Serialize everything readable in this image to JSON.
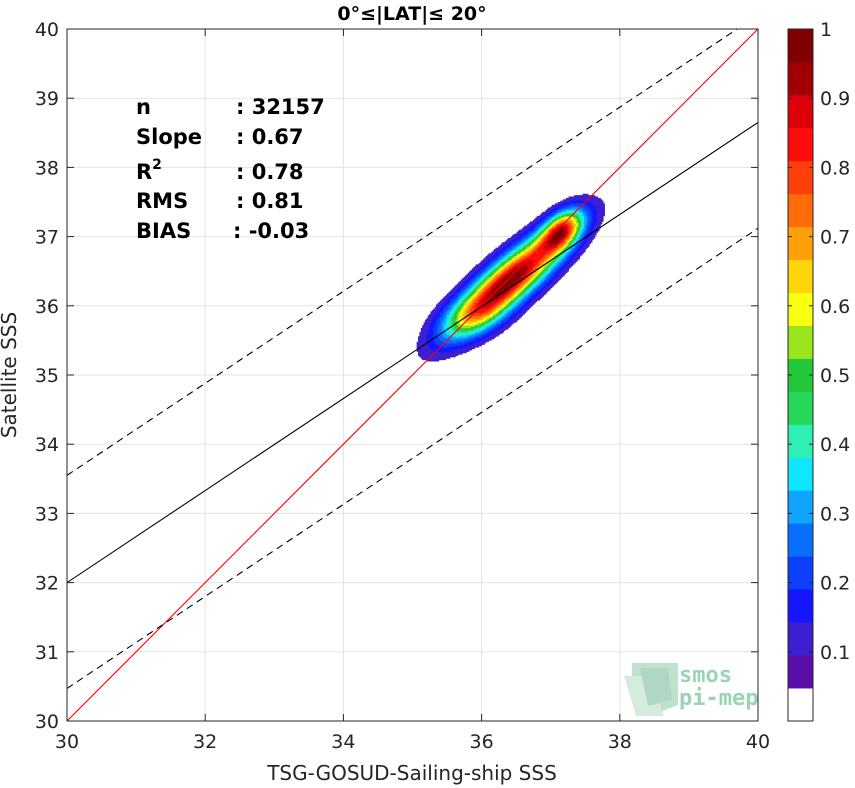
{
  "chart_data": {
    "type": "heatmap",
    "title": "0°≤|LAT|≤ 20°",
    "xlabel": "TSG-GOSUD-Sailing-ship SSS",
    "ylabel": "Satellite SSS",
    "xlim": [
      30,
      40
    ],
    "ylim": [
      30,
      40
    ],
    "xticks": [
      "30",
      "32",
      "34",
      "36",
      "38",
      "40"
    ],
    "yticks": [
      "30",
      "31",
      "32",
      "33",
      "34",
      "35",
      "36",
      "37",
      "38",
      "39",
      "40"
    ],
    "grid": true,
    "stats": [
      {
        "label": "n",
        "value": ": 32157"
      },
      {
        "label": "Slope",
        "value": ": 0.67"
      },
      {
        "label": "R",
        "sup": "2",
        "value": ": 0.78"
      },
      {
        "label": "RMS",
        "value": ": 0.81"
      },
      {
        "label": "BIAS",
        "value": ": -0.03"
      }
    ],
    "lines": {
      "identity": {
        "x": [
          30,
          40
        ],
        "y": [
          30,
          40
        ],
        "color": "#ff0000",
        "style": "solid"
      },
      "fit": {
        "x": [
          30,
          40
        ],
        "y": [
          32.0,
          38.65
        ],
        "color": "#000000",
        "style": "solid"
      },
      "upper_bound": {
        "x": [
          30,
          40
        ],
        "y": [
          33.55,
          40.2
        ],
        "color": "#000000",
        "style": "dashed"
      },
      "lower_bound": {
        "x": [
          30,
          40
        ],
        "y": [
          30.47,
          37.12
        ],
        "color": "#000000",
        "style": "dashed"
      }
    },
    "density_peaks": [
      {
        "x": 36.42,
        "y": 36.38,
        "value": 1.0,
        "sx": 0.55,
        "sy": 0.48,
        "rho": 0.85
      },
      {
        "x": 37.15,
        "y": 37.08,
        "value": 0.65,
        "sx": 0.2,
        "sy": 0.2,
        "rho": 0.5
      },
      {
        "x": 35.9,
        "y": 35.85,
        "value": 0.22,
        "sx": 0.32,
        "sy": 0.22,
        "rho": 0.4
      }
    ],
    "colorbar": {
      "min": 0,
      "max": 1,
      "ticks": [
        "0.1",
        "0.2",
        "0.3",
        "0.4",
        "0.5",
        "0.6",
        "0.7",
        "0.8",
        "0.9",
        "1"
      ],
      "colors": [
        "#ffffff",
        "#5a0fa8",
        "#3b1fd0",
        "#1515ff",
        "#0c3fff",
        "#0a6eff",
        "#0fa4ff",
        "#0fe6ff",
        "#2ff0b4",
        "#26d85a",
        "#22c83a",
        "#9be51c",
        "#f8ff10",
        "#ffd40a",
        "#ffa00a",
        "#ff6a0a",
        "#ff3f0a",
        "#ff0c0c",
        "#dd0008",
        "#a00004",
        "#800000"
      ]
    }
  },
  "logo": {
    "line1": "smos",
    "line2": "pi-mep"
  }
}
